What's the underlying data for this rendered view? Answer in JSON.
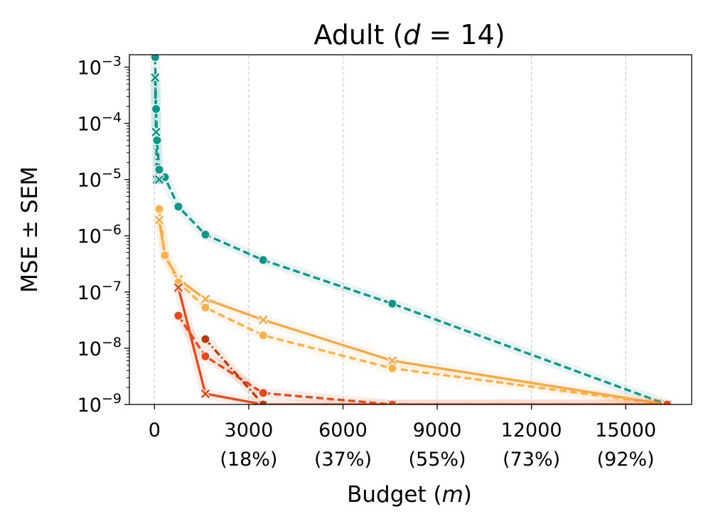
{
  "chart_data": {
    "type": "line",
    "title_prefix": "Adult (",
    "title_var": "d",
    "title_suffix": " = 14)",
    "xlabel_prefix": "Budget (",
    "xlabel_var": "m",
    "xlabel_suffix": ")",
    "ylabel": "MSE ± SEM",
    "xlim": [
      -800,
      17100
    ],
    "ylim_log10": [
      -9,
      -2.78
    ],
    "x_ticks": [
      {
        "value": 0,
        "label": "0",
        "pct": ""
      },
      {
        "value": 3000,
        "label": "3000",
        "pct": "(18%)"
      },
      {
        "value": 6000,
        "label": "6000",
        "pct": "(37%)"
      },
      {
        "value": 9000,
        "label": "9000",
        "pct": "(55%)"
      },
      {
        "value": 12000,
        "label": "12000",
        "pct": "(73%)"
      },
      {
        "value": 15000,
        "label": "15000",
        "pct": "(92%)"
      }
    ],
    "y_ticks": [
      {
        "exp": -3,
        "base": "10",
        "sup": "−3"
      },
      {
        "exp": -4,
        "base": "10",
        "sup": "−4"
      },
      {
        "exp": -5,
        "base": "10",
        "sup": "−5"
      },
      {
        "exp": -6,
        "base": "10",
        "sup": "−6"
      },
      {
        "exp": -7,
        "base": "10",
        "sup": "−7"
      },
      {
        "exp": -8,
        "base": "10",
        "sup": "−8"
      },
      {
        "exp": -9,
        "base": "10",
        "sup": "−9"
      }
    ],
    "grid_x": true,
    "series": [
      {
        "name": "teal dashed (circle)",
        "color": "#0f9688",
        "dash": "dashed",
        "marker": "circle",
        "x": [
          20,
          50,
          80,
          150,
          330,
          760,
          1620,
          3460,
          7570,
          16320
        ],
        "y": [
          0.0015,
          0.00018,
          5e-05,
          1.5e-05,
          1.1e-05,
          3.3e-06,
          1.05e-06,
          3.7e-07,
          6.2e-08,
          1e-09
        ]
      },
      {
        "name": "teal dash-dot (x)",
        "color": "#0f9688",
        "dash": "dashdot",
        "marker": "x",
        "x": [
          20,
          50,
          80,
          150
        ],
        "y": [
          0.00065,
          7e-05,
          1e-05,
          1e-05
        ]
      },
      {
        "name": "orange solid (x)",
        "color": "#f5a845",
        "dash": "solid",
        "marker": "x",
        "x": [
          150,
          330,
          760,
          1620,
          3460,
          7570,
          16320
        ],
        "y": [
          1.9e-06,
          4.5e-07,
          1.7e-07,
          7.5e-08,
          3.2e-08,
          6e-09,
          1e-09
        ]
      },
      {
        "name": "orange dashed (circle)",
        "color": "#fcb14d",
        "dash": "dashed",
        "marker": "circle",
        "x": [
          150,
          330,
          760,
          1620,
          3460,
          7570,
          16320
        ],
        "y": [
          3e-06,
          4.5e-07,
          1.5e-07,
          5.3e-08,
          1.7e-08,
          4.4e-09,
          1e-09
        ]
      },
      {
        "name": "red solid (x)",
        "color": "#e34a1b",
        "dash": "solid",
        "marker": "x",
        "x": [
          760,
          1620,
          3460,
          7570,
          16320
        ],
        "y": [
          1.2e-07,
          1.55e-09,
          1e-09,
          1e-09,
          1e-09
        ]
      },
      {
        "name": "red-orange dashed (circle)",
        "color": "#e64a19",
        "dash": "dashed",
        "marker": "circle",
        "x": [
          760,
          1620,
          3460,
          7570,
          16320
        ],
        "y": [
          3.8e-08,
          7.2e-09,
          1.6e-09,
          1e-09,
          1e-09
        ]
      },
      {
        "name": "dark red dash-dot (circle)",
        "color": "#b8390a",
        "dash": "dashdot",
        "marker": "circle",
        "x": [
          1620,
          3460
        ],
        "y": [
          1.45e-08,
          1e-09
        ]
      }
    ]
  }
}
